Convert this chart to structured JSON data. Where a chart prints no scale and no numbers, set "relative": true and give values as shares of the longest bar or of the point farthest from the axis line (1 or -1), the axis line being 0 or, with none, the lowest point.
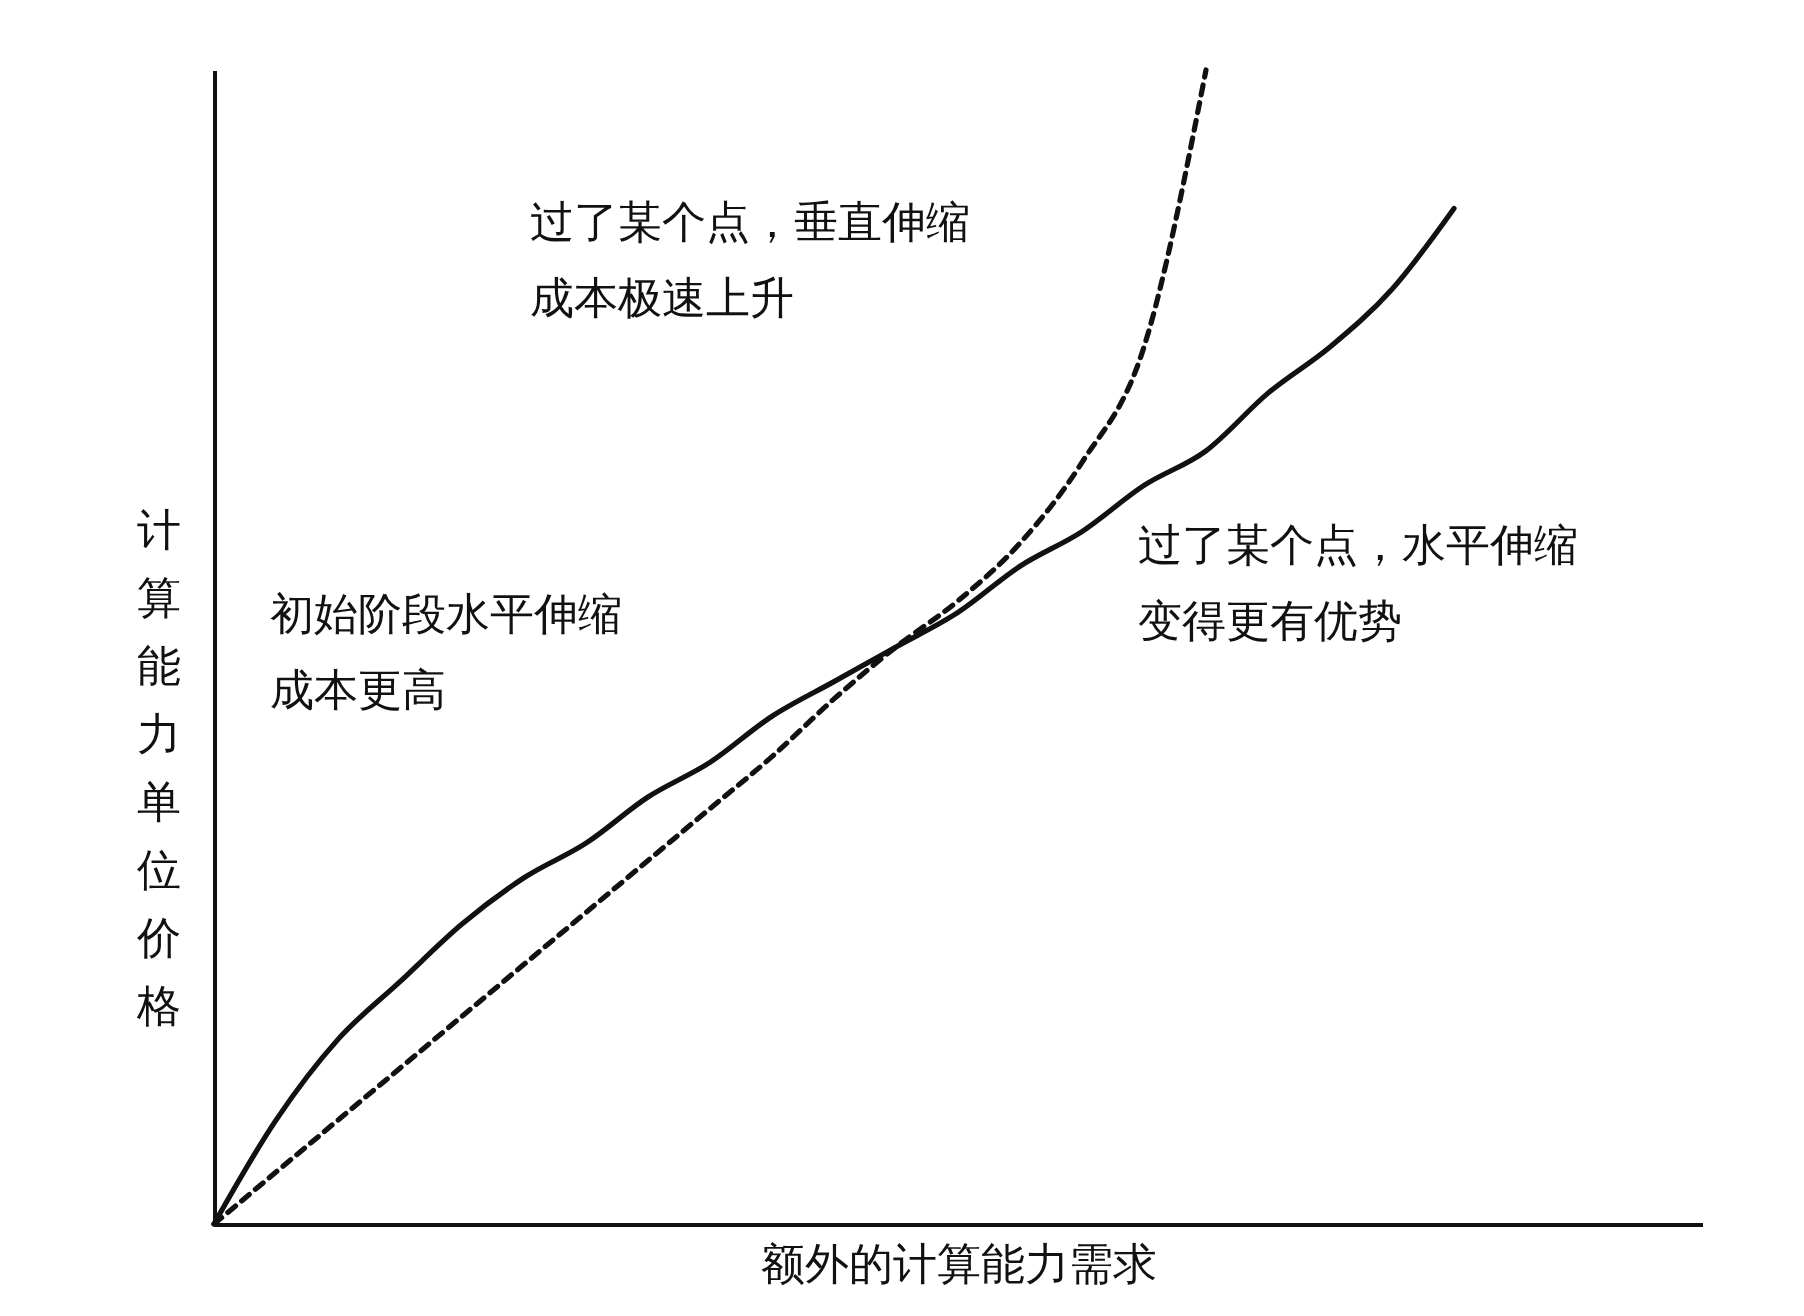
{
  "chart_data": {
    "type": "line",
    "relative": true,
    "xlabel": "额外的计算能力需求",
    "ylabel": "计算能力单位价格",
    "categories": [
      null,
      null,
      null,
      null,
      null,
      null,
      null,
      null,
      null,
      null,
      null,
      null,
      null,
      null,
      null,
      null,
      null,
      null,
      null,
      null,
      null,
      null,
      null,
      null,
      null
    ],
    "series": [
      {
        "color": "#111111",
        "line_style": "solid",
        "values": [
          0,
          0.09,
          0.16,
          0.21,
          0.26,
          0.3,
          0.33,
          0.37,
          0.4,
          0.44,
          0.47,
          0.5,
          0.53,
          0.57,
          0.6,
          0.64,
          0.67,
          0.72,
          0.76,
          0.81,
          0.88,
          null,
          null,
          null,
          null
        ]
      },
      {
        "color": "#111111",
        "line_style": "dashed",
        "values": [
          0,
          0.045,
          0.09,
          0.135,
          0.18,
          0.225,
          0.27,
          0.315,
          0.36,
          0.405,
          0.455,
          0.5,
          0.54,
          0.59,
          0.66,
          0.76,
          1.0,
          null,
          null,
          null,
          null,
          null,
          null,
          null,
          null
        ]
      }
    ],
    "annotations": [
      "过了某个点，垂直伸缩成本极速上升",
      "过了某个点，水平伸缩变得更有优势",
      "初始阶段水平伸缩成本更高"
    ],
    "grid": false,
    "marker": "none"
  }
}
